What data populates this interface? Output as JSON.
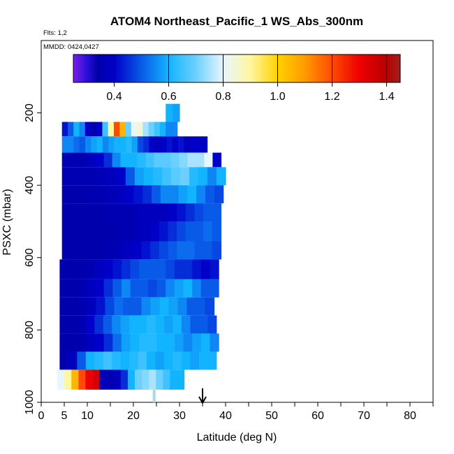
{
  "chart_data": {
    "type": "heatmap",
    "title": "ATOM4 Northeast_Pacific_1 WS_Abs_300nm",
    "annotations": {
      "flights": "Flts: 1,2",
      "dates": "MMDD: 0424,0427"
    },
    "xlabel": "Latitude (deg N)",
    "ylabel": "PSXC (mbar)",
    "xlim": [
      0,
      85
    ],
    "ylim": [
      1000,
      0
    ],
    "x_ticks": [
      0,
      5,
      10,
      20,
      30,
      40,
      50,
      60,
      70,
      80
    ],
    "x_minor_ticks": [
      15,
      25,
      35,
      45,
      55,
      65,
      75,
      85
    ],
    "y_ticks": [
      200,
      400,
      600,
      800,
      1000
    ],
    "colorbar": {
      "range": [
        0.25,
        1.45
      ],
      "ticks": [
        0.4,
        0.6,
        0.8,
        1.0,
        1.2,
        1.4
      ],
      "tick_labels": [
        "0.4",
        "0.6",
        "0.8",
        "1.0",
        "1.2",
        "1.4"
      ],
      "stops": [
        {
          "v": 0.25,
          "color": "#7a1ee8"
        },
        {
          "v": 0.3,
          "color": "#2a10d8"
        },
        {
          "v": 0.34,
          "color": "#0000a8"
        },
        {
          "v": 0.4,
          "color": "#0000c8"
        },
        {
          "v": 0.5,
          "color": "#0a5ae8"
        },
        {
          "v": 0.6,
          "color": "#12b4ff"
        },
        {
          "v": 0.7,
          "color": "#6cd0ff"
        },
        {
          "v": 0.8,
          "color": "#e8f6ff"
        },
        {
          "v": 0.9,
          "color": "#fff6a0"
        },
        {
          "v": 1.0,
          "color": "#ffd200"
        },
        {
          "v": 1.1,
          "color": "#ff9a00"
        },
        {
          "v": 1.2,
          "color": "#ff4a00"
        },
        {
          "v": 1.3,
          "color": "#ee0000"
        },
        {
          "v": 1.4,
          "color": "#b80000"
        },
        {
          "v": 1.45,
          "color": "#a02020"
        }
      ]
    },
    "arrow_latitude": 35,
    "ground_marker_latitude": 24.5,
    "rows": [
      {
        "p_top": 175,
        "p_bottom": 225,
        "x_start": 27,
        "x_end": 30,
        "values": [
          0.6,
          0.58
        ]
      },
      {
        "p_top": 225,
        "p_bottom": 265,
        "x_start": 4.5,
        "x_end": 29.5,
        "values": [
          0.42,
          0.5,
          0.6,
          0.55,
          0.4,
          0.35,
          0.4,
          0.65,
          0.9,
          1.2,
          1.05,
          0.7,
          0.8,
          0.85,
          0.75,
          0.7,
          0.65,
          0.6,
          0.55,
          0.55
        ]
      },
      {
        "p_top": 265,
        "p_bottom": 310,
        "x_start": 4.5,
        "x_end": 36,
        "values": [
          0.55,
          0.55,
          0.52,
          0.5,
          0.55,
          0.58,
          0.6,
          0.55,
          0.58,
          0.6,
          0.6,
          0.62,
          0.58,
          0.48,
          0.45,
          0.4,
          0.38,
          0.4,
          0.42,
          0.4,
          0.42,
          0.38,
          0.4,
          0.4,
          0.38
        ]
      },
      {
        "p_top": 310,
        "p_bottom": 350,
        "x_start": 4.5,
        "x_end": 39,
        "values": [
          0.36,
          0.36,
          0.36,
          0.38,
          0.4,
          0.45,
          0.55,
          0.6,
          0.6,
          0.62,
          0.65,
          0.68,
          0.68,
          0.7,
          0.72,
          0.75,
          0.75,
          0.8,
          0.4
        ]
      },
      {
        "p_top": 350,
        "p_bottom": 400,
        "x_start": 4.5,
        "x_end": 40,
        "values": [
          0.36,
          0.36,
          0.36,
          0.36,
          0.37,
          0.38,
          0.4,
          0.5,
          0.58,
          0.6,
          0.62,
          0.65,
          0.68,
          0.7,
          0.62,
          0.6,
          0.55,
          0.6
        ]
      },
      {
        "p_top": 400,
        "p_bottom": 450,
        "x_start": 4.5,
        "x_end": 39.5,
        "values": [
          0.35,
          0.35,
          0.35,
          0.36,
          0.36,
          0.37,
          0.38,
          0.4,
          0.42,
          0.45,
          0.5,
          0.55,
          0.55,
          0.58,
          0.6,
          0.55,
          0.5,
          0.48
        ]
      },
      {
        "p_top": 450,
        "p_bottom": 500,
        "x_start": 4.5,
        "x_end": 39,
        "values": [
          0.35,
          0.35,
          0.35,
          0.35,
          0.35,
          0.36,
          0.36,
          0.36,
          0.37,
          0.38,
          0.38,
          0.38,
          0.4,
          0.42,
          0.45,
          0.48,
          0.5,
          0.5
        ]
      },
      {
        "p_top": 500,
        "p_bottom": 555,
        "x_start": 4.5,
        "x_end": 39,
        "values": [
          0.35,
          0.35,
          0.35,
          0.35,
          0.35,
          0.35,
          0.36,
          0.36,
          0.37,
          0.38,
          0.4,
          0.42,
          0.45,
          0.48,
          0.5,
          0.5,
          0.52,
          0.5
        ]
      },
      {
        "p_top": 555,
        "p_bottom": 605,
        "x_start": 4.5,
        "x_end": 39,
        "values": [
          0.35,
          0.35,
          0.35,
          0.35,
          0.35,
          0.36,
          0.37,
          0.38,
          0.4,
          0.42,
          0.45,
          0.48,
          0.5,
          0.52,
          0.52,
          0.5,
          0.5,
          0.48
        ]
      },
      {
        "p_top": 605,
        "p_bottom": 660,
        "x_start": 4,
        "x_end": 38.5,
        "values": [
          0.35,
          0.35,
          0.35,
          0.36,
          0.38,
          0.4,
          0.42,
          0.45,
          0.48,
          0.5,
          0.5,
          0.5,
          0.48,
          0.45,
          0.45,
          0.42,
          0.4,
          0.42
        ]
      },
      {
        "p_top": 660,
        "p_bottom": 710,
        "x_start": 4,
        "x_end": 38.5,
        "values": [
          0.35,
          0.35,
          0.36,
          0.38,
          0.4,
          0.45,
          0.5,
          0.55,
          0.5,
          0.5,
          0.48,
          0.5,
          0.55,
          0.58,
          0.6,
          0.55,
          0.5,
          0.5
        ]
      },
      {
        "p_top": 710,
        "p_bottom": 760,
        "x_start": 4,
        "x_end": 37.5,
        "values": [
          0.35,
          0.35,
          0.36,
          0.38,
          0.42,
          0.48,
          0.52,
          0.5,
          0.5,
          0.55,
          0.58,
          0.6,
          0.58,
          0.55,
          0.5,
          0.5,
          0.48
        ]
      },
      {
        "p_top": 760,
        "p_bottom": 810,
        "x_start": 4,
        "x_end": 38,
        "values": [
          0.35,
          0.35,
          0.36,
          0.4,
          0.45,
          0.5,
          0.55,
          0.58,
          0.6,
          0.6,
          0.62,
          0.6,
          0.58,
          0.6,
          0.55,
          0.5,
          0.5,
          0.48
        ]
      },
      {
        "p_top": 810,
        "p_bottom": 860,
        "x_start": 4,
        "x_end": 38.5,
        "values": [
          0.35,
          0.35,
          0.36,
          0.38,
          0.4,
          0.45,
          0.52,
          0.58,
          0.6,
          0.62,
          0.62,
          0.6,
          0.6,
          0.58,
          0.55,
          0.58,
          0.6,
          0.55
        ]
      },
      {
        "p_top": 860,
        "p_bottom": 910,
        "x_start": 4,
        "x_end": 38,
        "values": [
          0.35,
          0.38,
          0.5,
          0.6,
          0.62,
          0.65,
          0.62,
          0.6,
          0.62,
          0.65,
          0.6,
          0.58,
          0.6,
          0.62,
          0.6,
          0.58,
          0.6,
          0.6
        ]
      },
      {
        "p_top": 910,
        "p_bottom": 965,
        "x_start": 3.5,
        "x_end": 31,
        "values": [
          0.8,
          0.9,
          1.05,
          1.2,
          1.3,
          1.35,
          0.38,
          0.36,
          0.38,
          0.45,
          0.6,
          0.7,
          0.72,
          0.75,
          0.7,
          0.65,
          0.6,
          0.6
        ]
      }
    ]
  }
}
